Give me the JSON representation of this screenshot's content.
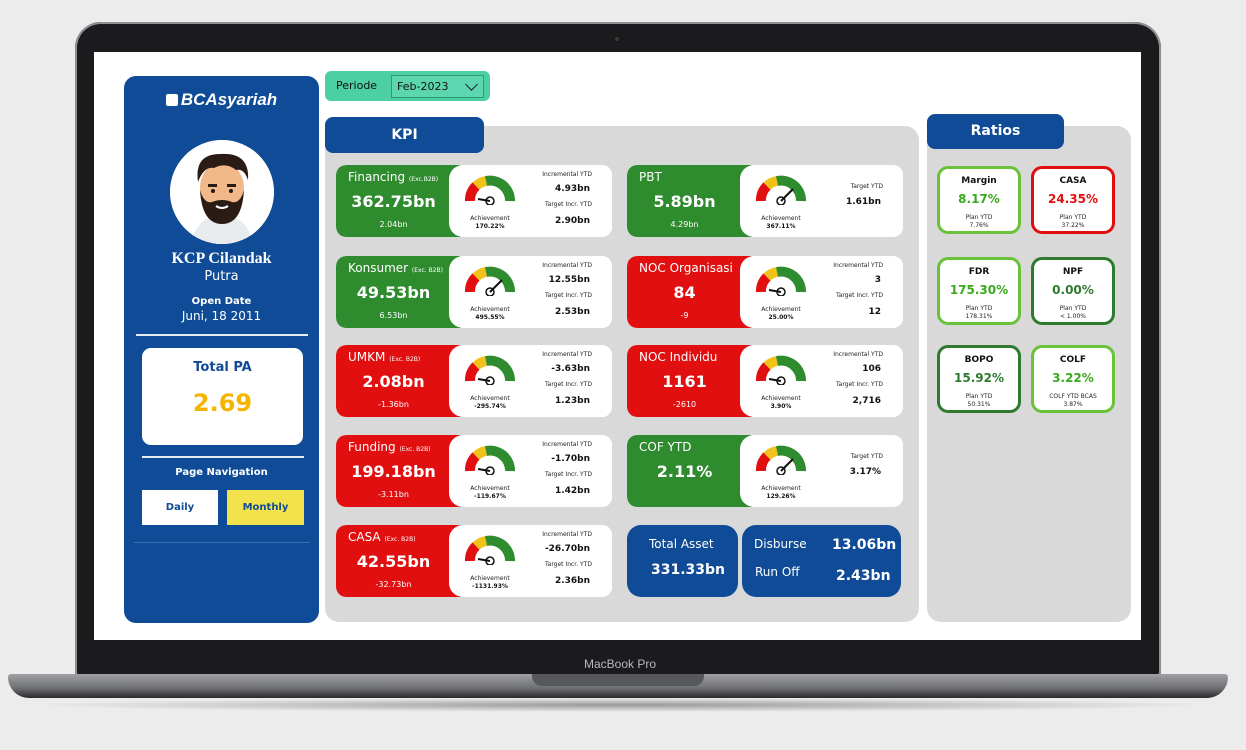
{
  "device": {
    "model_label": "MacBook Pro"
  },
  "sidebar": {
    "brand": "BCAsyariah",
    "branch_name": "KCP Cilandak",
    "sub_name": "Putra",
    "open_date_label": "Open Date",
    "open_date_value": "Juni, 18 2011",
    "total_pa_label": "Total PA",
    "total_pa_value": "2.69",
    "page_nav_label": "Page Navigation",
    "nav_daily": "Daily",
    "nav_monthly": "Monthly"
  },
  "filter": {
    "periode_label": "Periode",
    "periode_value": "Feb-2023"
  },
  "kpi": {
    "tab_label": "KPI",
    "labels": {
      "achievement": "Achievement",
      "incremental_ytd": "Incremental YTD",
      "target_incr_ytd": "Target Incr. YTD",
      "target_ytd": "Target YTD"
    },
    "cards": [
      {
        "title": "Financing",
        "qualifier": "(Exc.B2B)",
        "value": "362.75bn",
        "sub": "2.04bn",
        "achievement": "170.22%",
        "incremental_ytd": "4.93bn",
        "target_incr_ytd": "2.90bn",
        "color": "#2e8b2e"
      },
      {
        "title": "PBT",
        "qualifier": "",
        "value": "5.89bn",
        "sub": "4.29bn",
        "achievement": "367.11%",
        "target_ytd": "1.61bn",
        "color": "#2e8b2e"
      },
      {
        "title": "Konsumer",
        "qualifier": "(Exc. B2B)",
        "value": "49.53bn",
        "sub": "6.53bn",
        "achievement": "495.55%",
        "incremental_ytd": "12.55bn",
        "target_incr_ytd": "2.53bn",
        "color": "#2e8b2e"
      },
      {
        "title": "NOC Organisasi",
        "qualifier": "",
        "value": "84",
        "sub": "-9",
        "achievement": "25.00%",
        "incremental_ytd": "3",
        "target_incr_ytd": "12",
        "color": "#e10f0f"
      },
      {
        "title": "UMKM",
        "qualifier": "(Exc. B2B)",
        "value": "2.08bn",
        "sub": "-1.36bn",
        "achievement": "-295.74%",
        "incremental_ytd": "-3.63bn",
        "target_incr_ytd": "1.23bn",
        "color": "#e10f0f"
      },
      {
        "title": "NOC Individu",
        "qualifier": "",
        "value": "1161",
        "sub": "-2610",
        "achievement": "3.90%",
        "incremental_ytd": "106",
        "target_incr_ytd": "2,716",
        "color": "#e10f0f"
      },
      {
        "title": "Funding",
        "qualifier": "(Exc. B2B)",
        "value": "199.18bn",
        "sub": "-3.11bn",
        "achievement": "-119.67%",
        "incremental_ytd": "-1.70bn",
        "target_incr_ytd": "1.42bn",
        "color": "#e10f0f"
      },
      {
        "title": "COF YTD",
        "qualifier": "",
        "value": "2.11%",
        "sub": "",
        "achievement": "129.26%",
        "target_ytd": "3.17%",
        "color": "#2e8b2e"
      },
      {
        "title": "CASA",
        "qualifier": "(Exc. B2B)",
        "value": "42.55bn",
        "sub": "-32.73bn",
        "achievement": "-1131.93%",
        "incremental_ytd": "-26.70bn",
        "target_incr_ytd": "2.36bn",
        "color": "#e10f0f"
      }
    ],
    "total_asset": {
      "label": "Total Asset",
      "value": "331.33bn"
    },
    "disburse": {
      "label": "Disburse",
      "value": "13.06bn"
    },
    "run_off": {
      "label": "Run Off",
      "value": "2.43bn"
    }
  },
  "ratios": {
    "tab_label": "Ratios",
    "items": [
      {
        "name": "Margin",
        "value": "8.17%",
        "plan_label": "Plan YTD",
        "plan_value": "7.76%",
        "status": "good"
      },
      {
        "name": "CASA",
        "value": "24.35%",
        "plan_label": "Plan YTD",
        "plan_value": "37.22%",
        "status": "bad"
      },
      {
        "name": "FDR",
        "value": "175.30%",
        "plan_label": "Plan YTD",
        "plan_value": "178.31%",
        "status": "good"
      },
      {
        "name": "NPF",
        "value": "0.00%",
        "plan_label": "Plan YTD",
        "plan_value": "< 1.00%",
        "status": "good-dark"
      },
      {
        "name": "BOPO",
        "value": "15.92%",
        "plan_label": "Plan YTD",
        "plan_value": "50.31%",
        "status": "good-dark"
      },
      {
        "name": "COLF",
        "value": "3.22%",
        "plan_label": "COLF YTD BCAS",
        "plan_value": "3.87%",
        "status": "good"
      }
    ]
  },
  "colors": {
    "brand_blue": "#0f4b96",
    "good_green": "#2e8b2e",
    "bad_red": "#e10f0f",
    "pa_gold": "#f5b400",
    "periode_teal": "#4dcfa4",
    "nav_active": "#f2e34c"
  }
}
